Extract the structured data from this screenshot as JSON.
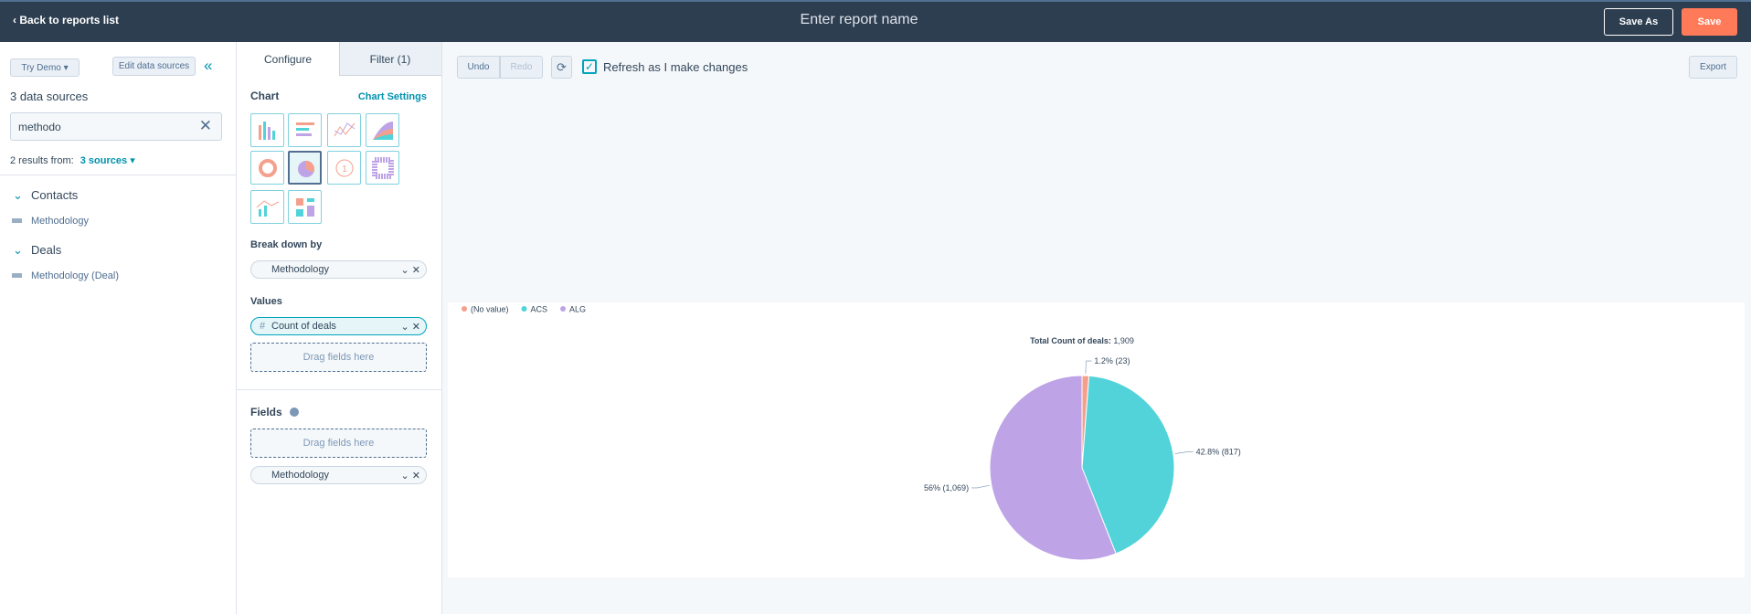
{
  "topbar": {
    "back": "Back to reports list",
    "report_name": "Enter report name",
    "save_as": "Save As",
    "save": "Save"
  },
  "sidebar": {
    "try_demo": "Try Demo",
    "edit_sources": "Edit data sources",
    "sources_count": "3 data sources",
    "search": "methodo",
    "results_prefix": "2 results from:",
    "results_link": "3 sources",
    "groups": [
      {
        "name": "Contacts",
        "items": [
          "Methodology"
        ]
      },
      {
        "name": "Deals",
        "items": [
          "Methodology (Deal)"
        ]
      }
    ]
  },
  "config": {
    "tabs": [
      "Configure",
      "Filter (1)"
    ],
    "chart_heading": "Chart",
    "chart_settings": "Chart Settings",
    "breakdown_heading": "Break down by",
    "breakdown_field": "Methodology",
    "values_heading": "Values",
    "value_field": "Count of deals",
    "drag_values": "Drag fields here",
    "fields_heading": "Fields",
    "drag_fields": "Drag fields here",
    "fields_field": "Methodology"
  },
  "toolbar": {
    "undo": "Undo",
    "redo": "Redo",
    "refresh": "Refresh as I make changes",
    "export": "Export"
  },
  "chart_data": {
    "type": "pie",
    "total_label": "Total Count of deals:",
    "total": {
      "value": 1909,
      "label": "1,909"
    },
    "categories": [
      "(No value)",
      "ACS",
      "ALG"
    ],
    "values": [
      23,
      817,
      1069
    ],
    "value_labels": [
      "1.2% (23)",
      "42.8% (817)",
      "56% (1,069)"
    ],
    "colors": [
      "#f5a08c",
      "#51d3d9",
      "#bea4e6"
    ],
    "legend": "top-left"
  }
}
